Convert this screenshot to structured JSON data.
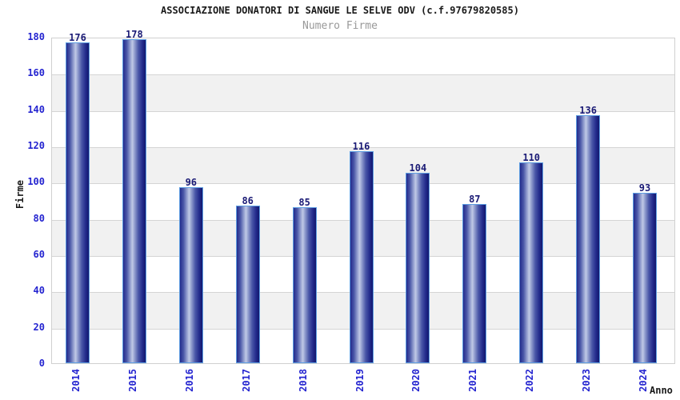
{
  "chart_data": {
    "type": "bar",
    "title": "ASSOCIAZIONE DONATORI DI SANGUE LE SELVE ODV (c.f.97679820585)",
    "subtitle": "Numero Firme",
    "xlabel": "Anno",
    "ylabel": "Firme",
    "categories": [
      "2014",
      "2015",
      "2016",
      "2017",
      "2018",
      "2019",
      "2020",
      "2021",
      "2022",
      "2023",
      "2024"
    ],
    "values": [
      176,
      178,
      96,
      86,
      85,
      116,
      104,
      87,
      110,
      136,
      93
    ],
    "ylim": [
      0,
      180
    ],
    "ytick_step": 20,
    "yticks": [
      0,
      20,
      40,
      60,
      80,
      100,
      120,
      140,
      160,
      180
    ],
    "grid": "horizontal gridlines every 20, alternating white/gray bands every 20 units",
    "legend": "none",
    "value_labels": "above each bar",
    "x_tick_rotation": "vertical (reading bottom to top)",
    "colors": {
      "title": "#1a1a1a",
      "subtitle": "#999999",
      "axis_tick_label": "#2424d0",
      "value_label": "#1a1a75",
      "bar_dark": "#232b8c",
      "bar_darkest": "#12186e",
      "bar_light": "#c0c9e6",
      "bar_border": "#5e9ee2",
      "band_gray": "#f1f1f1",
      "grid_line": "#d4d4d4",
      "plot_border": "#d0d0d0"
    }
  }
}
